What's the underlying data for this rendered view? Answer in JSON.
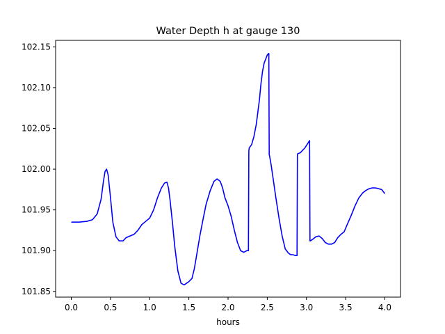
{
  "chart_data": {
    "type": "line",
    "title": "Water Depth h at gauge 130",
    "xlabel": "hours",
    "ylabel": "",
    "xlim": [
      -0.2,
      4.2
    ],
    "ylim": [
      101.843,
      102.158
    ],
    "grid": false,
    "x_ticks": [
      0.0,
      0.5,
      1.0,
      1.5,
      2.0,
      2.5,
      3.0,
      3.5,
      4.0
    ],
    "x_tick_labels": [
      "0.0",
      "0.5",
      "1.0",
      "1.5",
      "2.0",
      "2.5",
      "3.0",
      "3.5",
      "4.0"
    ],
    "y_ticks": [
      101.85,
      101.9,
      101.95,
      102.0,
      102.05,
      102.1,
      102.15
    ],
    "y_tick_labels": [
      "101.85",
      "101.90",
      "101.95",
      "102.00",
      "102.05",
      "102.10",
      "102.15"
    ],
    "series": [
      {
        "color": "#0000ff",
        "x": [
          0.0,
          0.1,
          0.2,
          0.27,
          0.33,
          0.38,
          0.41,
          0.43,
          0.45,
          0.47,
          0.5,
          0.53,
          0.57,
          0.61,
          0.66,
          0.7,
          0.75,
          0.8,
          0.85,
          0.9,
          0.95,
          1.0,
          1.05,
          1.1,
          1.15,
          1.19,
          1.22,
          1.24,
          1.26,
          1.29,
          1.32,
          1.36,
          1.4,
          1.44,
          1.47,
          1.5,
          1.54,
          1.57,
          1.6,
          1.64,
          1.68,
          1.72,
          1.77,
          1.82,
          1.86,
          1.9,
          1.93,
          1.96,
          2.0,
          2.04,
          2.08,
          2.12,
          2.16,
          2.2,
          2.24,
          2.26,
          2.265,
          2.27,
          2.3,
          2.33,
          2.36,
          2.38,
          2.4,
          2.42,
          2.44,
          2.46,
          2.48,
          2.5,
          2.52,
          2.525,
          2.53,
          2.55,
          2.58,
          2.61,
          2.65,
          2.69,
          2.73,
          2.77,
          2.8,
          2.83,
          2.86,
          2.88,
          2.885,
          2.89,
          2.92,
          2.94,
          2.96,
          2.98,
          3.0,
          3.02,
          3.04,
          3.045,
          3.05,
          3.08,
          3.12,
          3.16,
          3.2,
          3.24,
          3.28,
          3.32,
          3.36,
          3.4,
          3.44,
          3.48,
          3.52,
          3.57,
          3.62,
          3.67,
          3.72,
          3.76,
          3.8,
          3.84,
          3.88,
          3.92,
          3.96,
          4.0
        ],
        "y": [
          101.935,
          101.935,
          101.936,
          101.938,
          101.945,
          101.963,
          101.985,
          101.997,
          102.0,
          101.993,
          101.965,
          101.935,
          101.917,
          101.912,
          101.912,
          101.916,
          101.918,
          101.92,
          101.925,
          101.932,
          101.936,
          101.94,
          101.95,
          101.965,
          101.977,
          101.983,
          101.984,
          101.977,
          101.962,
          101.935,
          101.905,
          101.875,
          101.86,
          101.858,
          101.86,
          101.862,
          101.866,
          101.878,
          101.895,
          101.918,
          101.938,
          101.957,
          101.973,
          101.985,
          101.988,
          101.985,
          101.977,
          101.965,
          101.955,
          101.942,
          101.925,
          101.91,
          101.9,
          101.898,
          101.9,
          101.9,
          102.022,
          102.026,
          102.03,
          102.04,
          102.055,
          102.07,
          102.085,
          102.105,
          102.12,
          102.13,
          102.135,
          102.14,
          102.142,
          102.018,
          102.016,
          102.005,
          101.985,
          101.965,
          101.94,
          101.918,
          101.902,
          101.897,
          101.895,
          101.895,
          101.894,
          101.894,
          102.018,
          102.019,
          102.02,
          102.022,
          102.024,
          102.026,
          102.029,
          102.032,
          102.035,
          101.912,
          101.912,
          101.914,
          101.917,
          101.918,
          101.915,
          101.91,
          101.908,
          101.908,
          101.91,
          101.916,
          101.92,
          101.923,
          101.932,
          101.943,
          101.955,
          101.965,
          101.971,
          101.974,
          101.976,
          101.977,
          101.977,
          101.976,
          101.975,
          101.97
        ]
      }
    ]
  }
}
